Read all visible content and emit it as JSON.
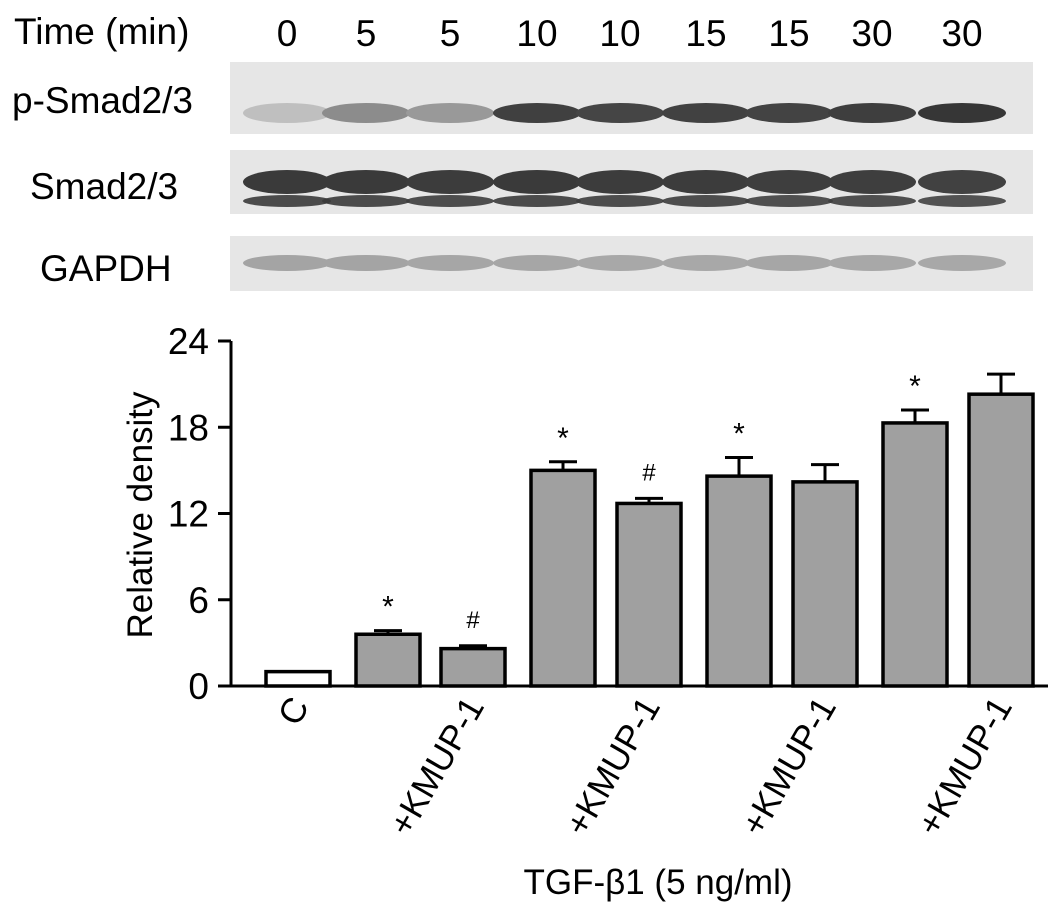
{
  "blot": {
    "time_header": "Time (min)",
    "time_points": [
      "0",
      "5",
      "5",
      "10",
      "10",
      "15",
      "15",
      "30",
      "30"
    ],
    "rows": [
      {
        "label": "p-Smad2/3",
        "darkness": [
          0.18,
          0.45,
          0.38,
          0.85,
          0.82,
          0.84,
          0.83,
          0.86,
          0.9
        ]
      },
      {
        "label": "Smad2/3",
        "darkness": [
          0.88,
          0.88,
          0.87,
          0.88,
          0.87,
          0.87,
          0.86,
          0.86,
          0.84
        ]
      },
      {
        "label": "GAPDH",
        "darkness": [
          0.32,
          0.32,
          0.31,
          0.31,
          0.3,
          0.3,
          0.31,
          0.3,
          0.3
        ]
      }
    ]
  },
  "chart_data": {
    "type": "bar",
    "categories": [
      "C",
      "",
      "+KMUP-1",
      "",
      "+KMUP-1",
      "",
      "+KMUP-1",
      "",
      "+KMUP-1"
    ],
    "values": [
      1.0,
      3.6,
      2.6,
      15.0,
      12.7,
      14.6,
      14.2,
      18.3,
      20.3
    ],
    "errors": [
      0.0,
      0.25,
      0.2,
      0.6,
      0.35,
      1.3,
      1.2,
      0.9,
      1.4
    ],
    "annotations": [
      "",
      "*",
      "#",
      "*",
      "#",
      "*",
      "",
      "*",
      ""
    ],
    "ylabel": "Relative density",
    "xlabel": "TGF-β1 (5 ng/ml)",
    "ylim": [
      0,
      24
    ],
    "yticks": [
      "0",
      "6",
      "12",
      "18",
      "24"
    ],
    "colors": {
      "control": "#ffffff",
      "treated": "#a0a0a0",
      "edge": "#000000"
    },
    "grid": false
  }
}
